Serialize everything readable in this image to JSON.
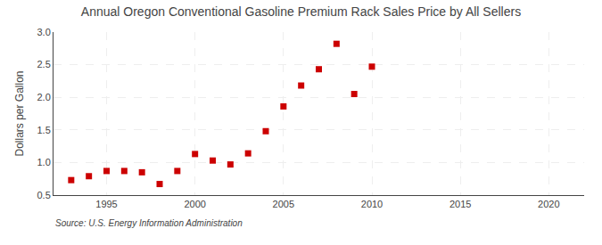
{
  "chart_data": {
    "type": "scatter",
    "title": "Annual Oregon Conventional Gasoline Premium Rack Sales Price by All Sellers",
    "ylabel": "Dollars per Gallon",
    "source": "Source: U.S. Energy Information Administration",
    "x": [
      1993,
      1994,
      1995,
      1996,
      1997,
      1998,
      1999,
      2000,
      2001,
      2002,
      2003,
      2004,
      2005,
      2006,
      2007,
      2008,
      2009,
      2010
    ],
    "values": [
      0.73,
      0.79,
      0.87,
      0.87,
      0.85,
      0.67,
      0.87,
      1.13,
      1.03,
      0.97,
      1.14,
      1.48,
      1.86,
      2.18,
      2.43,
      2.82,
      2.05,
      2.47
    ],
    "xlim": [
      1992,
      2022
    ],
    "ylim": [
      0.5,
      3.0
    ],
    "xticks": [
      1995,
      2000,
      2005,
      2010,
      2015,
      2020
    ],
    "yticks": [
      0.5,
      {
        "value": 1.0,
        "label": "1.0"
      },
      1.5,
      {
        "value": 2.0,
        "label": "2.0"
      },
      2.5,
      {
        "value": 3.0,
        "label": "3.0"
      }
    ],
    "color": "#cc0000",
    "marker": "square",
    "grid": true
  }
}
